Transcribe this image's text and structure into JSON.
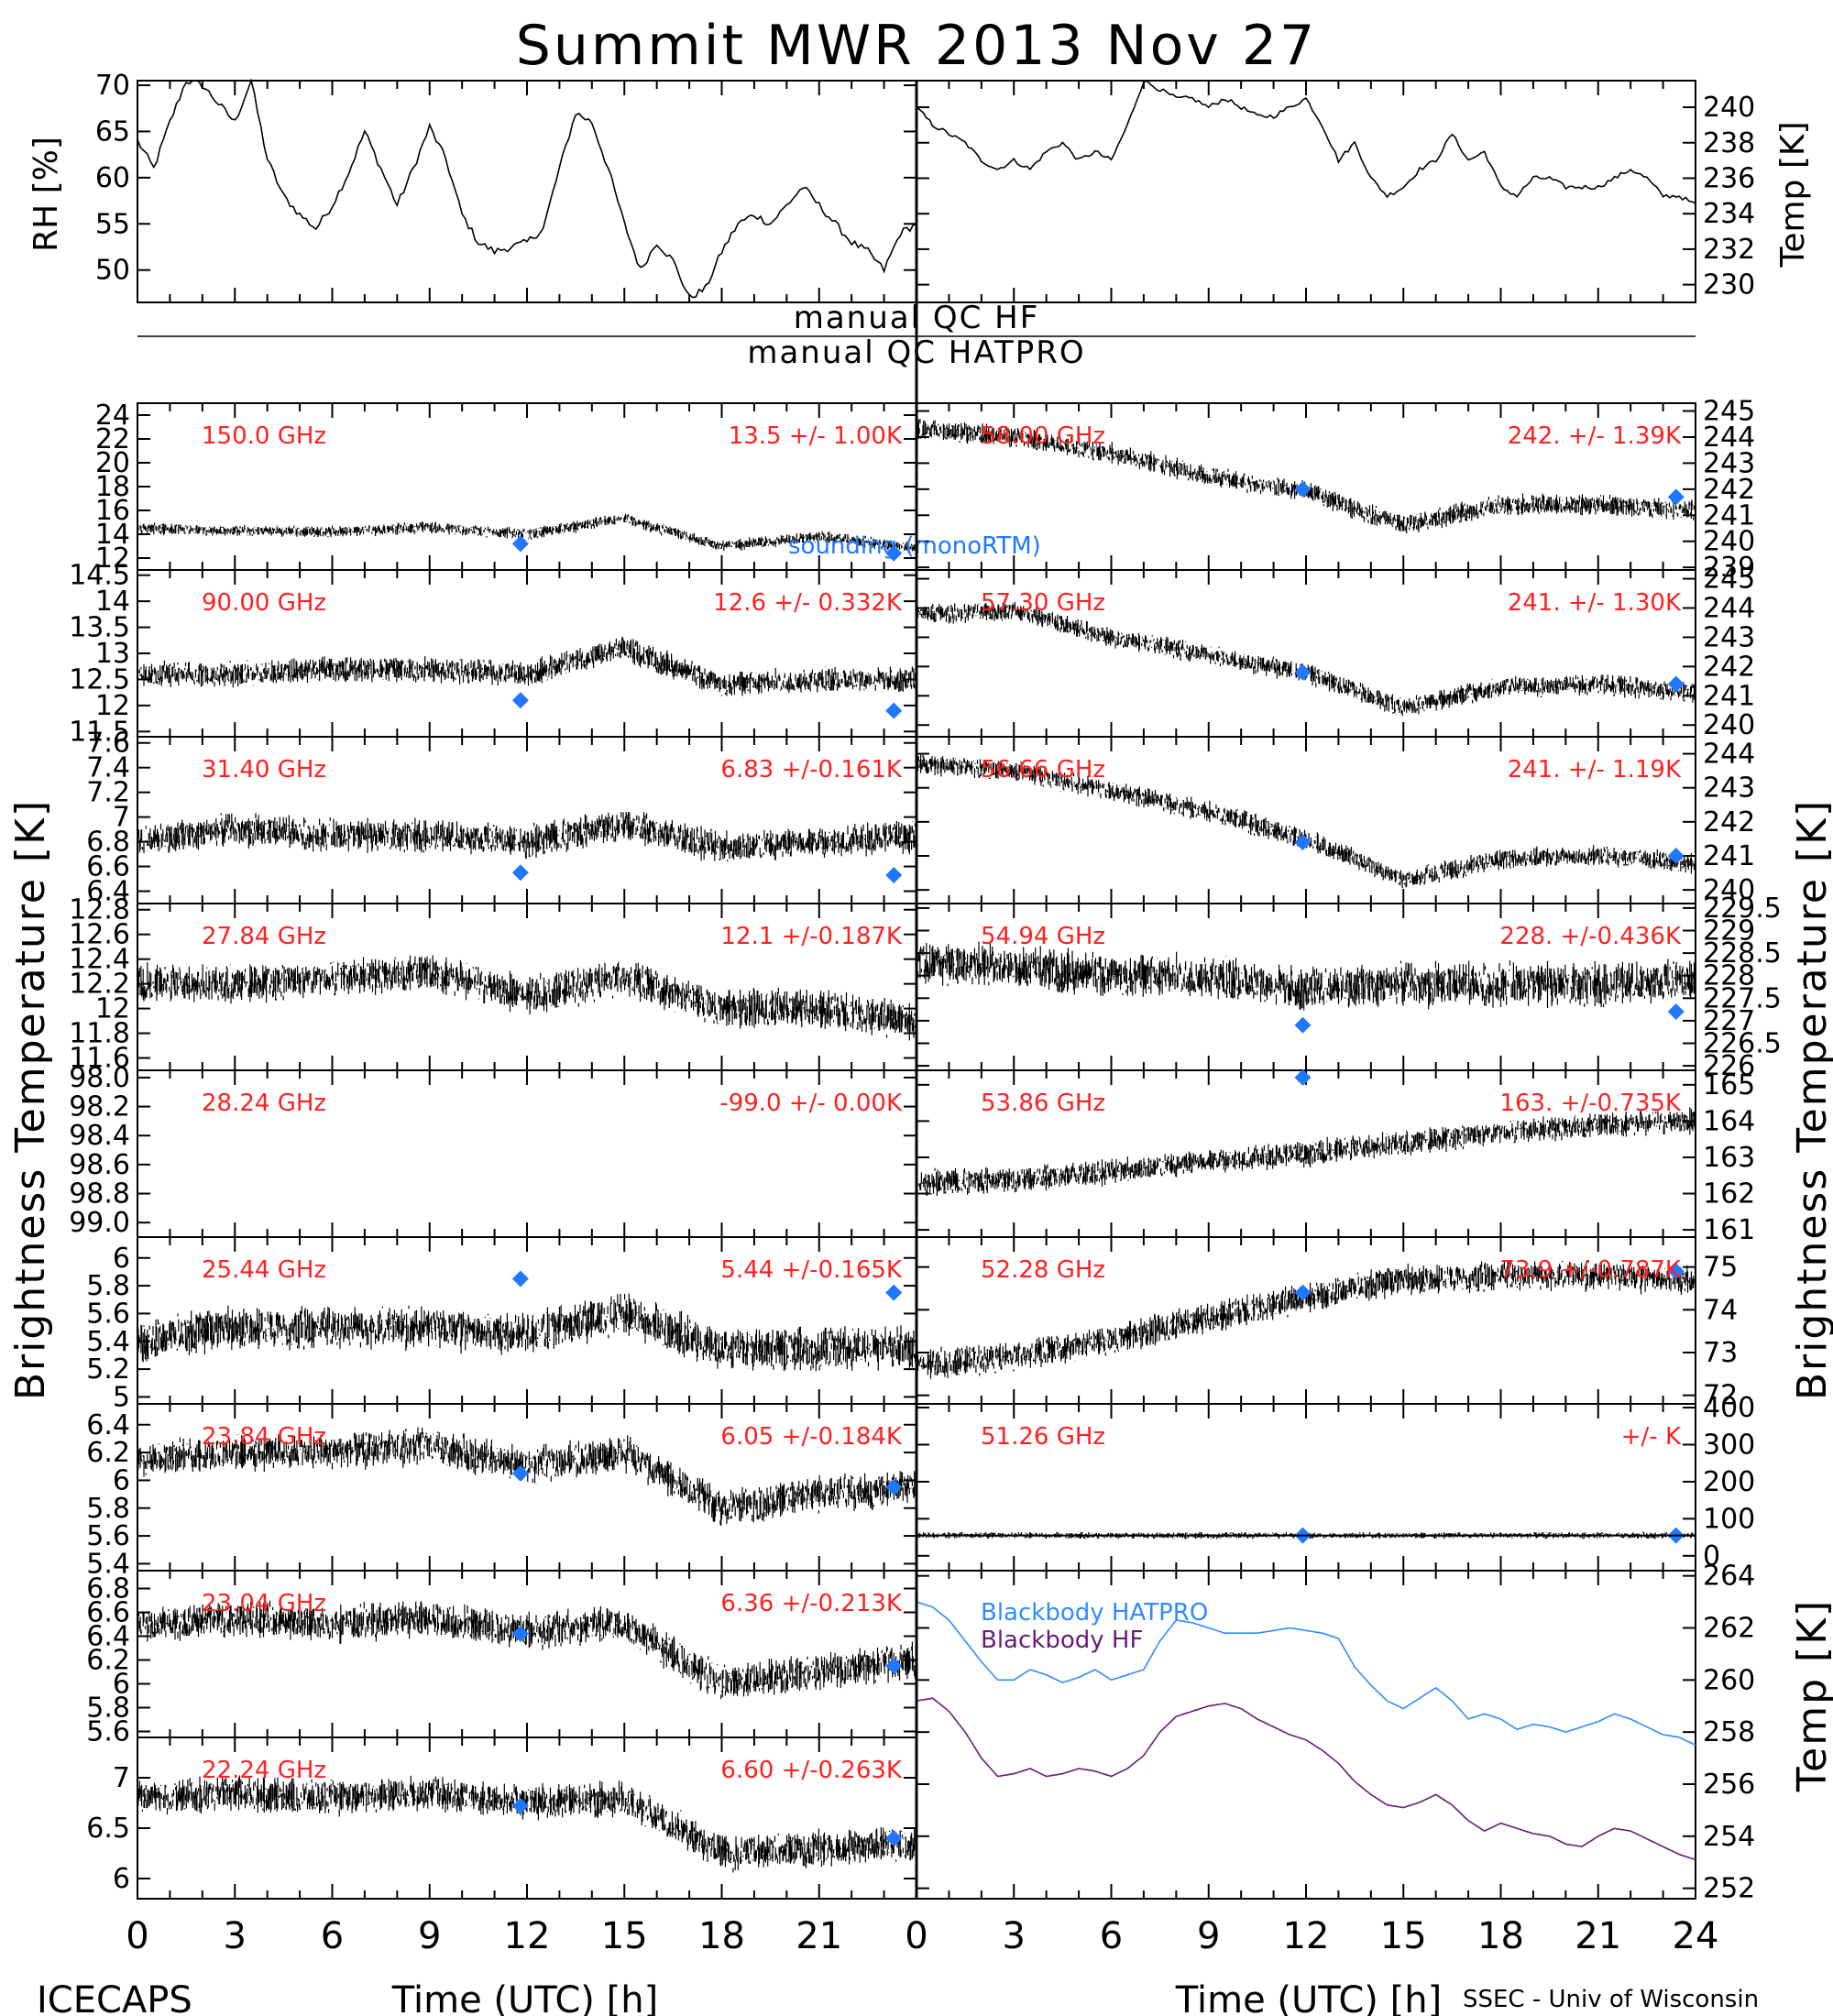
{
  "title": "Summit MWR 2013 Nov 27",
  "footer": {
    "left": "ICECAPS",
    "right": "SSEC - Univ of Wisconsin",
    "xlabel": "Time (UTC) [h]"
  },
  "x_ticks": [
    "0",
    "3",
    "6",
    "9",
    "12",
    "15",
    "18",
    "21",
    "24"
  ],
  "qc": {
    "top": "manual QC HF",
    "bottom": "manual QC HATPRO"
  },
  "axis_labels": {
    "rh": "RH [%]",
    "temp_top": "Temp [K]",
    "tb_left": "Brightness Temperature [K]",
    "tb_right": "Brightness Temperature [K]",
    "temp_bottom": "Temp [K]"
  },
  "colors": {
    "data": "#000000",
    "marker": "#1f78ff",
    "label": "#ff2020",
    "bb_hatpro": "#2f8cff",
    "bb_hf": "#6a1b7a"
  },
  "chart_data": [
    {
      "id": "rh",
      "type": "line",
      "ylabel": "RH [%]",
      "ylim": [
        46.5,
        70.5
      ],
      "yticks": [
        50,
        55,
        60,
        65,
        70
      ],
      "x": [
        0,
        0.5,
        1,
        1.5,
        2,
        2.5,
        3,
        3.5,
        4,
        4.5,
        5,
        5.5,
        6,
        6.5,
        7,
        7.5,
        8,
        8.5,
        9,
        9.5,
        10,
        10.5,
        11,
        11.5,
        12,
        12.5,
        13,
        13.5,
        14,
        14.5,
        15,
        15.5,
        16,
        16.5,
        17,
        17.5,
        18,
        18.5,
        19,
        19.5,
        20,
        20.5,
        21,
        21.5,
        22,
        22.5,
        23,
        23.5,
        24
      ],
      "values": [
        64,
        61,
        66,
        70.5,
        70,
        68,
        66,
        70.5,
        62,
        58,
        56,
        54.5,
        57,
        60.5,
        65,
        61,
        57,
        61,
        65.5,
        62,
        56,
        53,
        52,
        52.5,
        53,
        54.5,
        61,
        67,
        66,
        61,
        55,
        50,
        53,
        51,
        47,
        48,
        52,
        55,
        56,
        55,
        57,
        59,
        57,
        55,
        53,
        52,
        50,
        54,
        55
      ]
    },
    {
      "id": "temp_top",
      "type": "line",
      "ylabel": "Temp [K]",
      "ylim": [
        229,
        241.5
      ],
      "yticks": [
        230,
        232,
        234,
        236,
        238,
        240
      ],
      "x": [
        0,
        0.5,
        1,
        1.5,
        2,
        2.5,
        3,
        3.5,
        4,
        4.5,
        5,
        5.5,
        6,
        6.5,
        7,
        7.5,
        8,
        8.5,
        9,
        9.5,
        10,
        10.5,
        11,
        11.5,
        12,
        12.5,
        13,
        13.5,
        14,
        14.5,
        15,
        15.5,
        16,
        16.5,
        17,
        17.5,
        18,
        18.5,
        19,
        19.5,
        20,
        20.5,
        21,
        21.5,
        22,
        22.5,
        23,
        23.5,
        24
      ],
      "values": [
        240,
        239,
        238.5,
        238,
        237,
        236.5,
        237,
        236.5,
        237.5,
        238,
        237,
        237.5,
        237,
        239,
        241.5,
        241,
        240.5,
        240.5,
        240,
        240.5,
        240,
        239.5,
        239.5,
        240,
        240.5,
        239,
        237,
        238,
        236,
        235,
        235.5,
        236.5,
        237,
        238.5,
        237,
        237.5,
        235.5,
        235,
        236,
        236,
        235.5,
        235.5,
        235.5,
        236,
        236.5,
        236,
        235,
        235,
        234.5
      ]
    },
    {
      "id": "hf_150",
      "type": "scatter",
      "label": "150.0 GHz",
      "stat": "13.5 +/-  1.00K",
      "ylim": [
        11,
        25
      ],
      "yticks": [
        12,
        14,
        16,
        18,
        20,
        22,
        24
      ],
      "x": [
        0,
        3,
        6,
        9,
        12,
        15,
        18,
        21,
        24
      ],
      "values": [
        14.5,
        14.3,
        14.2,
        14.6,
        14.0,
        15.3,
        13.0,
        13.8,
        12.8
      ],
      "noise": 1.1,
      "markers": [
        {
          "x": 11.8,
          "y": 13.2
        },
        {
          "x": 23.3,
          "y": 12.4
        }
      ]
    },
    {
      "id": "hf_90",
      "type": "scatter",
      "label": "90.00 GHz",
      "stat": "12.6 +/- 0.332K",
      "ylim": [
        11.4,
        14.6
      ],
      "yticks": [
        11.5,
        12.0,
        12.5,
        13.0,
        13.5,
        14.0,
        14.5
      ],
      "x": [
        0,
        3,
        6,
        9,
        12,
        15,
        18,
        21,
        24
      ],
      "values": [
        12.6,
        12.6,
        12.7,
        12.7,
        12.6,
        13.1,
        12.4,
        12.5,
        12.5
      ],
      "noise": 0.55,
      "markers": [
        {
          "x": 11.8,
          "y": 12.1
        },
        {
          "x": 23.3,
          "y": 11.9
        }
      ]
    },
    {
      "id": "hf_31",
      "type": "scatter",
      "label": "31.40 GHz",
      "stat": "6.83 +/-0.161K",
      "ylim": [
        6.3,
        7.65
      ],
      "yticks": [
        6.4,
        6.6,
        6.8,
        7.0,
        7.2,
        7.4,
        7.6
      ],
      "x": [
        0,
        3,
        6,
        9,
        12,
        15,
        18,
        21,
        24
      ],
      "values": [
        6.8,
        6.9,
        6.85,
        6.85,
        6.8,
        6.95,
        6.75,
        6.8,
        6.85
      ],
      "noise": 0.3,
      "markers": [
        {
          "x": 11.8,
          "y": 6.55
        },
        {
          "x": 23.3,
          "y": 6.53
        }
      ]
    },
    {
      "id": "hf_27",
      "type": "scatter",
      "label": "27.84 GHz",
      "stat": "12.1 +/-0.187K",
      "ylim": [
        11.5,
        12.85
      ],
      "yticks": [
        11.6,
        11.8,
        12.0,
        12.2,
        12.4,
        12.6,
        12.8
      ],
      "x": [
        0,
        3,
        6,
        9,
        12,
        15,
        18,
        21,
        24
      ],
      "values": [
        12.2,
        12.2,
        12.25,
        12.3,
        12.1,
        12.25,
        12.0,
        12.0,
        11.9
      ],
      "noise": 0.35,
      "markers": []
    },
    {
      "id": "hf_28",
      "type": "scatter",
      "label": "28.24 GHz",
      "stat": "-99.0 +/-  0.00K",
      "ylim": [
        -99.1,
        -97.95
      ],
      "yticks": [
        -99.0,
        -98.8,
        -98.6,
        -98.4,
        -98.2,
        -98.0
      ],
      "ytick_labels": [
        "99.0",
        "98.8",
        "98.6",
        "98.4",
        "98.2",
        "98.0"
      ],
      "x": [],
      "values": [],
      "noise": 0,
      "markers": []
    },
    {
      "id": "hf_25",
      "type": "scatter",
      "label": "25.44 GHz",
      "stat": "5.44 +/-0.165K",
      "ylim": [
        4.95,
        6.15
      ],
      "yticks": [
        5.0,
        5.2,
        5.4,
        5.6,
        5.8,
        6.0
      ],
      "x": [
        0,
        3,
        6,
        9,
        12,
        15,
        18,
        21,
        24
      ],
      "values": [
        5.4,
        5.5,
        5.5,
        5.5,
        5.45,
        5.6,
        5.35,
        5.35,
        5.35
      ],
      "noise": 0.35,
      "markers": [
        {
          "x": 11.8,
          "y": 5.85
        },
        {
          "x": 23.3,
          "y": 5.75
        }
      ]
    },
    {
      "id": "hf_23_84",
      "type": "scatter",
      "label": "23.84 GHz",
      "stat": "6.05 +/-0.184K",
      "ylim": [
        5.35,
        6.55
      ],
      "yticks": [
        5.4,
        5.6,
        5.8,
        6.0,
        6.2,
        6.4
      ],
      "x": [
        0,
        3,
        6,
        9,
        12,
        15,
        18,
        21,
        24
      ],
      "values": [
        6.15,
        6.2,
        6.2,
        6.25,
        6.1,
        6.2,
        5.8,
        5.9,
        5.95
      ],
      "noise": 0.3,
      "markers": [
        {
          "x": 11.8,
          "y": 6.05
        },
        {
          "x": 23.3,
          "y": 5.95
        }
      ]
    },
    {
      "id": "hf_23_04",
      "type": "scatter",
      "label": "23.04 GHz",
      "stat": "6.36 +/-0.213K",
      "ylim": [
        5.55,
        6.95
      ],
      "yticks": [
        5.6,
        5.8,
        6.0,
        6.2,
        6.4,
        6.6,
        6.8
      ],
      "x": [
        0,
        3,
        6,
        9,
        12,
        15,
        18,
        21,
        24
      ],
      "values": [
        6.5,
        6.55,
        6.5,
        6.55,
        6.45,
        6.5,
        6.0,
        6.1,
        6.2
      ],
      "noise": 0.35,
      "markers": [
        {
          "x": 11.8,
          "y": 6.42
        },
        {
          "x": 23.3,
          "y": 6.15
        }
      ]
    },
    {
      "id": "hf_22",
      "type": "scatter",
      "label": "22.24 GHz",
      "stat": "6.60 +/-0.263K",
      "ylim": [
        5.8,
        7.4
      ],
      "yticks": [
        6.0,
        6.5,
        7.0
      ],
      "x": [
        0,
        3,
        6,
        9,
        12,
        15,
        18,
        21,
        24
      ],
      "values": [
        6.8,
        6.85,
        6.8,
        6.85,
        6.75,
        6.8,
        6.25,
        6.3,
        6.35
      ],
      "noise": 0.4,
      "markers": [
        {
          "x": 11.8,
          "y": 6.72
        },
        {
          "x": 23.3,
          "y": 6.4
        }
      ]
    },
    {
      "id": "hat_58",
      "type": "scatter",
      "label": "58.00 GHz",
      "stat": "242. +/- 1.39K",
      "overlay": "sounding (monoRTM)",
      "ylim": [
        238.9,
        245.3
      ],
      "yticks": [
        239,
        240,
        241,
        242,
        243,
        244,
        245
      ],
      "x": [
        0,
        3,
        6,
        9,
        12,
        15,
        18,
        21,
        24
      ],
      "values": [
        244.3,
        244.0,
        243.4,
        242.5,
        241.9,
        240.6,
        241.4,
        241.4,
        241.2
      ],
      "noise": 0.9,
      "markers": [
        {
          "x": 11.9,
          "y": 242.0
        },
        {
          "x": 23.4,
          "y": 241.7
        }
      ]
    },
    {
      "id": "hat_57",
      "type": "scatter",
      "label": "57.30 GHz",
      "stat": "241. +/- 1.30K",
      "ylim": [
        239.6,
        245.3
      ],
      "yticks": [
        240,
        241,
        242,
        243,
        244,
        245
      ],
      "x": [
        0,
        3,
        6,
        9,
        12,
        15,
        18,
        21,
        24
      ],
      "values": [
        243.8,
        243.9,
        243.0,
        242.4,
        241.8,
        240.6,
        241.3,
        241.4,
        241.1
      ],
      "noise": 0.8,
      "markers": [
        {
          "x": 11.9,
          "y": 241.8
        },
        {
          "x": 23.4,
          "y": 241.4
        }
      ]
    },
    {
      "id": "hat_56",
      "type": "scatter",
      "label": "56.66 GHz",
      "stat": "241. +/- 1.19K",
      "ylim": [
        239.6,
        244.5
      ],
      "yticks": [
        240,
        241,
        242,
        243,
        244
      ],
      "x": [
        0,
        3,
        6,
        9,
        12,
        15,
        18,
        21,
        24
      ],
      "values": [
        243.7,
        243.5,
        242.9,
        242.3,
        241.5,
        240.3,
        240.9,
        241.0,
        240.8
      ],
      "noise": 0.7,
      "markers": [
        {
          "x": 11.9,
          "y": 241.4
        },
        {
          "x": 23.4,
          "y": 241.0
        }
      ]
    },
    {
      "id": "hat_54",
      "type": "scatter",
      "label": "54.94 GHz",
      "stat": "228. +/-0.436K",
      "ylim": [
        225.9,
        229.6
      ],
      "yticks": [
        226,
        226.5,
        227,
        227.5,
        228,
        228.5,
        229,
        229.5
      ],
      "x": [
        0,
        3,
        6,
        9,
        12,
        15,
        18,
        21,
        24
      ],
      "values": [
        228.3,
        228.2,
        228.0,
        228.0,
        227.7,
        227.8,
        227.8,
        227.8,
        227.9
      ],
      "noise": 1.1,
      "markers": [
        {
          "x": 11.9,
          "y": 226.9
        },
        {
          "x": 23.4,
          "y": 227.2
        }
      ]
    },
    {
      "id": "hat_53",
      "type": "scatter",
      "label": "53.86 GHz",
      "stat": "163. +/-0.735K",
      "ylim": [
        160.8,
        165.4
      ],
      "yticks": [
        161,
        162,
        163,
        164,
        165
      ],
      "x": [
        0,
        3,
        6,
        9,
        12,
        15,
        18,
        21,
        24
      ],
      "values": [
        162.3,
        162.4,
        162.6,
        162.9,
        163.1,
        163.4,
        163.7,
        163.9,
        164.0
      ],
      "noise": 0.8,
      "markers": [
        {
          "x": 11.9,
          "y": 165.2
        }
      ]
    },
    {
      "id": "hat_52",
      "type": "scatter",
      "label": "52.28 GHz",
      "stat": "73.9 +/-0.787K",
      "ylim": [
        71.8,
        75.7
      ],
      "yticks": [
        72,
        73,
        74,
        75
      ],
      "x": [
        0,
        3,
        6,
        9,
        12,
        15,
        18,
        21,
        24
      ],
      "values": [
        72.7,
        72.9,
        73.3,
        73.8,
        74.3,
        74.7,
        74.8,
        74.8,
        74.7
      ],
      "noise": 0.8,
      "markers": [
        {
          "x": 11.9,
          "y": 74.4
        },
        {
          "x": 23.4,
          "y": 74.9
        }
      ]
    },
    {
      "id": "hat_51",
      "type": "scatter",
      "label": "51.26 GHz",
      "stat": "+/-       K",
      "ylim": [
        -40,
        410
      ],
      "yticks": [
        0,
        100,
        200,
        300,
        400
      ],
      "x": [
        0,
        3,
        6,
        9,
        12,
        15,
        18,
        21,
        24
      ],
      "values": [
        55,
        55,
        55,
        55,
        55,
        55,
        55,
        55,
        55
      ],
      "noise": 20,
      "markers": [
        {
          "x": 11.9,
          "y": 55
        },
        {
          "x": 23.4,
          "y": 55
        }
      ]
    },
    {
      "id": "blackbody",
      "type": "line",
      "ylabel": "Temp [K]",
      "ylim": [
        251.6,
        264.2
      ],
      "yticks": [
        252,
        254,
        256,
        258,
        260,
        262,
        264
      ],
      "x": [
        0,
        0.5,
        1,
        1.5,
        2,
        2.5,
        3,
        3.5,
        4,
        4.5,
        5,
        5.5,
        6,
        6.5,
        7,
        7.5,
        8,
        8.5,
        9,
        9.5,
        10,
        10.5,
        11,
        11.5,
        12,
        12.5,
        13,
        13.5,
        14,
        14.5,
        15,
        15.5,
        16,
        16.5,
        17,
        17.5,
        18,
        18.5,
        19,
        19.5,
        20,
        20.5,
        21,
        21.5,
        22,
        22.5,
        23,
        23.5,
        24
      ],
      "series": [
        {
          "name": "Blackbody HATPRO",
          "color": "#2f8cff",
          "values": [
            263,
            262.8,
            262.3,
            261.5,
            260.7,
            260,
            260,
            260.4,
            260.2,
            259.9,
            260.1,
            260.4,
            260,
            260.2,
            260.4,
            261.5,
            262.3,
            262.2,
            262,
            261.8,
            261.8,
            261.8,
            261.9,
            262,
            261.9,
            261.8,
            261.6,
            260.5,
            259.8,
            259.2,
            258.9,
            259.3,
            259.7,
            259.2,
            258.5,
            258.7,
            258.5,
            258.1,
            258.3,
            258.2,
            258,
            258.2,
            258.4,
            258.7,
            258.5,
            258.2,
            257.9,
            257.8,
            257.5
          ]
        },
        {
          "name": "Blackbody HF",
          "color": "#6a1b7a",
          "values": [
            259.2,
            259.3,
            258.8,
            258,
            257,
            256.3,
            256.4,
            256.6,
            256.3,
            256.4,
            256.6,
            256.5,
            256.3,
            256.6,
            257.1,
            258,
            258.6,
            258.8,
            259,
            259.1,
            258.9,
            258.5,
            258.2,
            257.9,
            257.7,
            257.3,
            256.8,
            256.1,
            255.6,
            255.2,
            255.1,
            255.3,
            255.6,
            255.2,
            254.6,
            254.2,
            254.5,
            254.3,
            254.1,
            254,
            253.7,
            253.6,
            254,
            254.3,
            254.2,
            253.9,
            253.6,
            253.3,
            253.1
          ]
        }
      ]
    }
  ]
}
